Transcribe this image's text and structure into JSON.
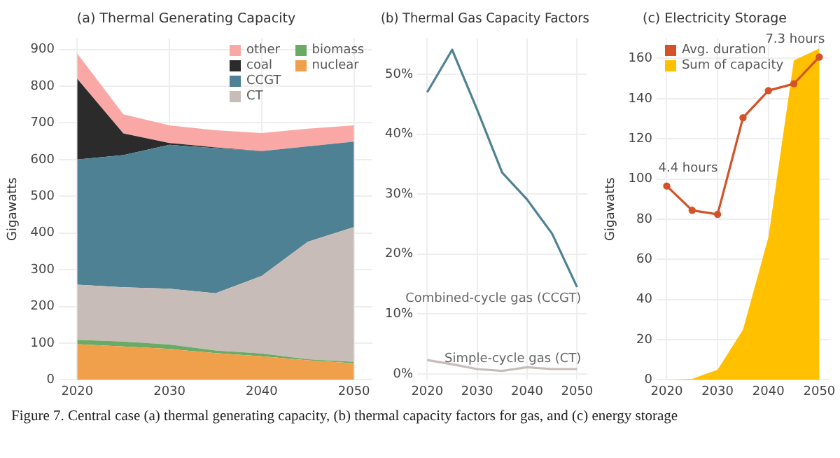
{
  "chart_data": [
    {
      "type": "area",
      "title": "(a) Thermal Generating Capacity",
      "ylabel": "Gigawatts",
      "stacked": true,
      "grid": true,
      "legend": "top right",
      "x": [
        2020,
        2025,
        2030,
        2035,
        2040,
        2045,
        2050
      ],
      "xlim": [
        2018,
        2052
      ],
      "xticks": [
        2020,
        2030,
        2040,
        2050
      ],
      "ylim": [
        0,
        930
      ],
      "yticks": [
        0,
        100,
        200,
        300,
        400,
        500,
        600,
        700,
        800,
        900
      ],
      "series": [
        {
          "name": "nuclear",
          "color": "#f0a04b",
          "values": [
            97,
            91,
            84,
            73,
            64,
            53,
            45
          ]
        },
        {
          "name": "biomass",
          "color": "#6aaa64",
          "values": [
            12,
            13,
            12,
            7,
            8,
            3,
            4
          ]
        },
        {
          "name": "CT",
          "color": "#c8bcb8",
          "values": [
            150,
            148,
            152,
            156,
            211,
            320,
            367
          ]
        },
        {
          "name": "CCGT",
          "color": "#4f8194",
          "values": [
            341,
            360,
            392,
            395,
            340,
            260,
            233
          ]
        },
        {
          "name": "coal",
          "color": "#2b2b2b",
          "values": [
            220,
            59,
            5,
            2,
            0,
            0,
            0
          ]
        },
        {
          "name": "other",
          "color": "#f9a8a6",
          "values": [
            69,
            52,
            48,
            47,
            49,
            48,
            44
          ]
        }
      ],
      "annotations": [
        "Figure 7. Central case (a) thermal generating capacity, (b) thermal capacity factors for gas, and (c) energy storage"
      ]
    },
    {
      "type": "line",
      "title": "(b) Thermal Gas Capacity Factors",
      "grid": true,
      "x": [
        2020,
        2025,
        2030,
        2035,
        2040,
        2045,
        2050
      ],
      "xlim": [
        2018,
        2052
      ],
      "xticks": [
        2020,
        2030,
        2040,
        2050
      ],
      "ylim": [
        -1,
        56
      ],
      "yticks": [
        {
          "value": 0,
          "label": "0%"
        },
        {
          "value": 10,
          "label": "10%"
        },
        {
          "value": 20,
          "label": "20%"
        },
        {
          "value": 30,
          "label": "30%"
        },
        {
          "value": 40,
          "label": "40%"
        },
        {
          "value": 50,
          "label": "50%"
        }
      ],
      "series": [
        {
          "name": "Combined-cycle gas (CCGT)",
          "color": "#4f8194",
          "values": [
            47.0,
            54.1,
            44.1,
            33.6,
            29.1,
            23.4,
            14.5
          ]
        },
        {
          "name": "Simple-cycle gas (CT)",
          "color": "#c8bcb8",
          "values": [
            2.3,
            1.6,
            0.8,
            0.5,
            1.1,
            0.8,
            0.8
          ]
        }
      ]
    },
    {
      "type": "line",
      "title": "(c) Electricity Storage",
      "ylabel": "Gigawatts",
      "grid": true,
      "legend": "top left",
      "x": [
        2020,
        2025,
        2030,
        2035,
        2040,
        2045,
        2050
      ],
      "xlim": [
        2018,
        2052
      ],
      "xticks": [
        2020,
        2030,
        2040,
        2050
      ],
      "ylim": [
        0,
        170
      ],
      "yticks": [
        0,
        20,
        40,
        60,
        80,
        100,
        120,
        140,
        160
      ],
      "series": [
        {
          "name": "Avg. duration",
          "color": "#d2532a",
          "marker": "circle",
          "values": [
            96.5,
            84.4,
            82.4,
            130.5,
            144,
            147.4,
            160.7
          ]
        },
        {
          "name": "Sum of capacity",
          "type": "area",
          "color": "#ffc000",
          "values": [
            0,
            0.5,
            5,
            25,
            71,
            159,
            165
          ]
        }
      ],
      "annotations": [
        {
          "text": "4.4 hours",
          "x": 2020,
          "y": 96.5
        },
        {
          "text": "7.3 hours",
          "x": 2050,
          "y": 160.7
        }
      ]
    }
  ]
}
